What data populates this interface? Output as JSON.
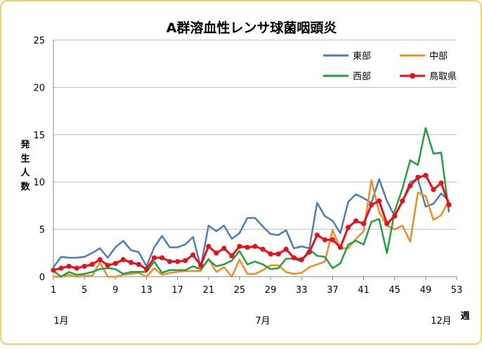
{
  "chart_data": {
    "type": "line",
    "title": "A群溶血性レンサ球菌咽頭炎",
    "ylabel": "発生人数",
    "xlabel": "週",
    "ylim": [
      0,
      25
    ],
    "yticks": [
      0,
      5,
      10,
      15,
      20,
      25
    ],
    "xlim": [
      1,
      53
    ],
    "xticks": [
      1,
      5,
      9,
      13,
      17,
      21,
      25,
      29,
      33,
      37,
      41,
      45,
      49,
      53
    ],
    "month_labels": [
      {
        "label": "1月",
        "week": 2
      },
      {
        "label": "7月",
        "week": 28
      },
      {
        "label": "12月",
        "week": 51
      }
    ],
    "grid": true,
    "legend_position": "top-right",
    "series": [
      {
        "name": "東部",
        "color": "#4a7ebb",
        "values": [
          1.0,
          2.1,
          2.0,
          2.0,
          2.1,
          2.5,
          3.0,
          2.0,
          3.1,
          3.8,
          2.8,
          2.6,
          1.1,
          3.1,
          4.3,
          3.1,
          3.1,
          3.4,
          4.2,
          1.0,
          5.4,
          4.8,
          5.4,
          4.0,
          4.6,
          6.2,
          6.2,
          5.3,
          4.5,
          4.4,
          4.9,
          3.0,
          3.2,
          3.0,
          7.8,
          6.4,
          5.9,
          4.6,
          7.9,
          8.7,
          8.3,
          7.8,
          10.3,
          8.0,
          6.4,
          7.9,
          10.0,
          10.3,
          7.4,
          7.7,
          8.8,
          8.0
        ]
      },
      {
        "name": "中部",
        "color": "#f08c22",
        "values": [
          0.0,
          0.0,
          0.2,
          0.0,
          0.1,
          0.1,
          1.5,
          0.0,
          0.0,
          0.2,
          0.3,
          0.4,
          0.0,
          0.9,
          0.2,
          0.4,
          0.5,
          0.6,
          0.6,
          0.6,
          1.9,
          0.5,
          1.0,
          0.0,
          1.8,
          0.3,
          0.3,
          0.7,
          1.2,
          1.2,
          0.5,
          0.3,
          0.4,
          1.0,
          1.3,
          1.6,
          4.9,
          3.0,
          3.0,
          4.0,
          4.8,
          10.2,
          6.8,
          5.4,
          5.0,
          5.4,
          3.7,
          8.9,
          8.5,
          6.0,
          6.5,
          8.1
        ]
      },
      {
        "name": "西部",
        "color": "#21a040",
        "values": [
          0.6,
          0.0,
          0.5,
          0.2,
          0.3,
          0.5,
          0.8,
          0.9,
          0.8,
          0.3,
          0.5,
          0.5,
          0.5,
          1.6,
          0.4,
          0.7,
          0.7,
          0.7,
          1.1,
          0.8,
          1.8,
          1.1,
          1.3,
          1.7,
          2.7,
          1.3,
          1.6,
          1.3,
          0.8,
          0.9,
          1.9,
          1.9,
          1.6,
          2.9,
          2.2,
          2.1,
          0.9,
          1.4,
          3.4,
          3.8,
          3.4,
          5.8,
          6.1,
          2.5,
          6.9,
          9.3,
          12.3,
          11.8,
          15.7,
          13.0,
          13.1,
          6.8
        ]
      },
      {
        "name": "鳥取県",
        "color": "#e8101a",
        "values": [
          0.7,
          0.9,
          1.1,
          0.9,
          1.1,
          1.3,
          1.8,
          1.2,
          1.4,
          1.8,
          1.5,
          1.3,
          0.8,
          2.0,
          2.0,
          1.6,
          1.6,
          1.7,
          2.3,
          1.2,
          3.2,
          2.5,
          3.0,
          2.2,
          3.2,
          3.1,
          3.2,
          2.9,
          2.4,
          2.4,
          2.9,
          2.0,
          1.8,
          2.6,
          4.4,
          3.9,
          3.9,
          3.1,
          5.2,
          5.9,
          5.6,
          7.6,
          8.0,
          5.6,
          6.4,
          8.0,
          9.6,
          10.5,
          10.7,
          9.2,
          9.9,
          7.6
        ]
      }
    ]
  }
}
